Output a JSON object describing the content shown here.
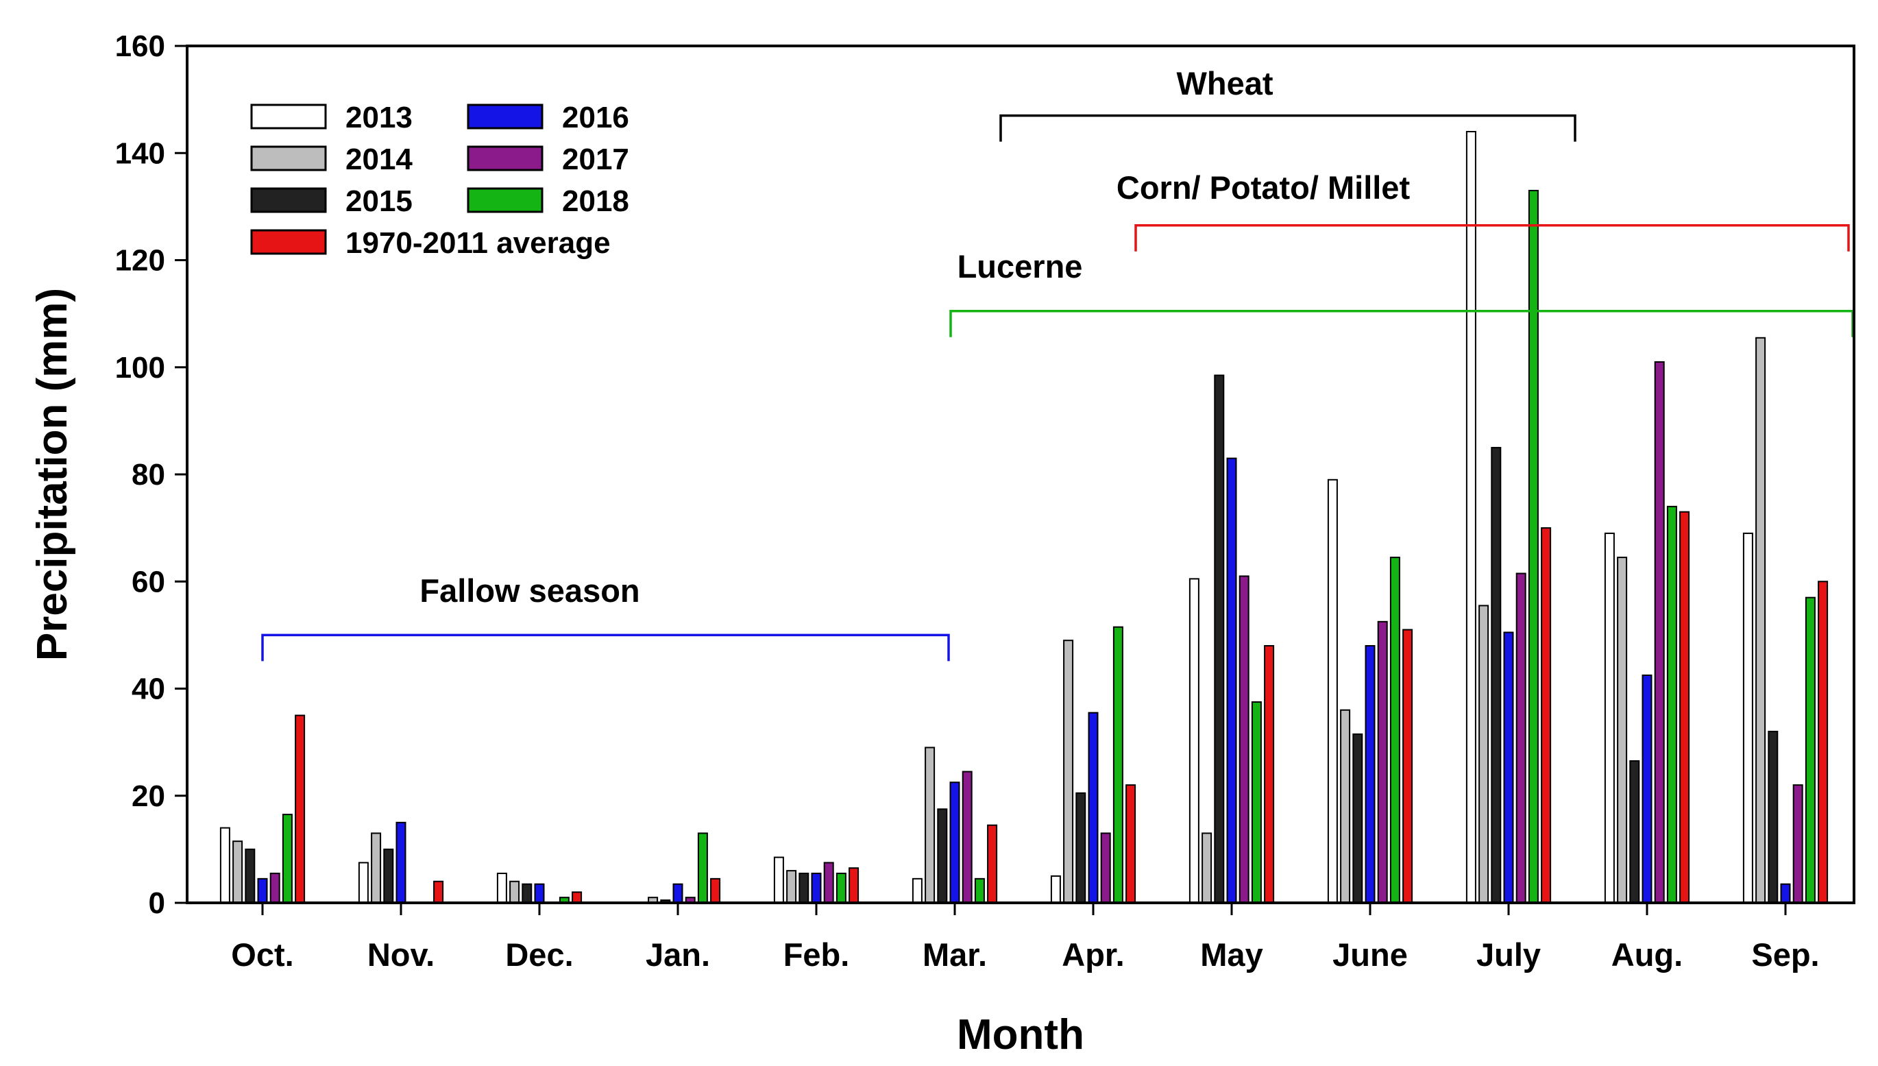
{
  "chart_data": {
    "type": "bar",
    "title": "",
    "xlabel": "Month",
    "ylabel": "Precipitation (mm)",
    "ylim": [
      0,
      160
    ],
    "yticks": [
      0,
      20,
      40,
      60,
      80,
      100,
      120,
      140,
      160
    ],
    "categories": [
      "Oct.",
      "Nov.",
      "Dec.",
      "Jan.",
      "Feb.",
      "Mar.",
      "Apr.",
      "May",
      "June",
      "July",
      "Aug.",
      "Sep."
    ],
    "series": [
      {
        "name": "2013",
        "color": "#ffffff",
        "values": [
          14,
          7.5,
          5.5,
          0,
          8.5,
          4.5,
          5,
          60.5,
          79,
          144,
          69,
          69
        ]
      },
      {
        "name": "2014",
        "color": "#bdbdbd",
        "values": [
          11.5,
          13,
          4,
          1,
          6,
          29,
          49,
          13,
          36,
          55.5,
          64.5,
          105.5
        ]
      },
      {
        "name": "2015",
        "color": "#222222",
        "values": [
          10,
          10,
          3.5,
          0.5,
          5.5,
          17.5,
          20.5,
          98.5,
          31.5,
          85,
          26.5,
          32
        ]
      },
      {
        "name": "2016",
        "color": "#1414e6",
        "values": [
          4.5,
          15,
          3.5,
          3.5,
          5.5,
          22.5,
          35.5,
          83,
          48,
          50.5,
          42.5,
          3.5
        ]
      },
      {
        "name": "2017",
        "color": "#8b1a8b",
        "values": [
          5.5,
          0,
          0,
          1,
          7.5,
          24.5,
          13,
          61,
          52.5,
          61.5,
          101,
          22
        ]
      },
      {
        "name": "2018",
        "color": "#14b414",
        "values": [
          16.5,
          0,
          1,
          13,
          5.5,
          4.5,
          51.5,
          37.5,
          64.5,
          133,
          74,
          57
        ]
      },
      {
        "name": "1970-2011 average",
        "color": "#e61414",
        "values": [
          35,
          4,
          2,
          4.5,
          6.5,
          14.5,
          22,
          48,
          51,
          70,
          73,
          60
        ]
      }
    ],
    "legend": {
      "position": "top-left",
      "columns": 2
    },
    "annotations": [
      {
        "label": "Fallow season",
        "color": "#1414e6",
        "from_month": "Oct.",
        "to_month": "Mar.",
        "level": 50
      },
      {
        "label": "Wheat",
        "color": "#000000",
        "from_month": "Mar.",
        "to_month": "July",
        "level": 147
      },
      {
        "label": "Corn/ Potato/ Millet",
        "color": "#e61414",
        "from_month": "Apr.",
        "to_month": "Sep.",
        "level": 126.5
      },
      {
        "label": "Lucerne",
        "color": "#14b414",
        "from_month": "Mar.",
        "to_month": "Sep.",
        "level": 110.5
      }
    ]
  }
}
